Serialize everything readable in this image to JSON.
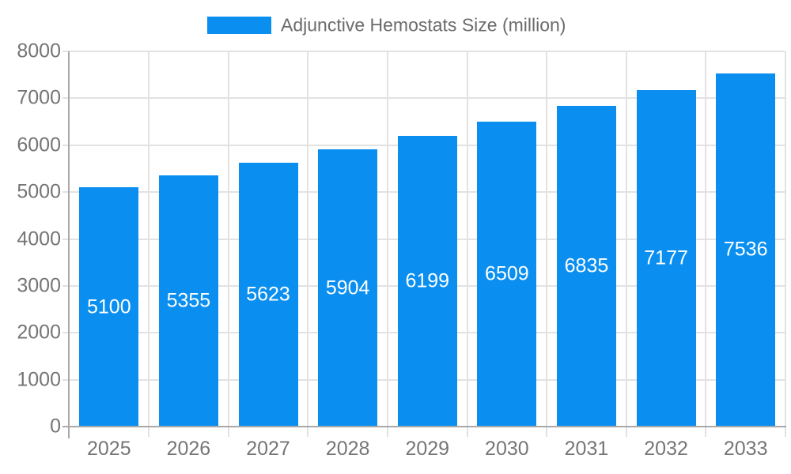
{
  "legend": {
    "label": "Adjunctive Hemostats Size (million)"
  },
  "colors": {
    "bar": "#0a8ff0",
    "grid": "#e2e2e2",
    "axis": "#a9a9a9",
    "axis_text": "#757575",
    "legend_text": "#6b6b6b",
    "value_label": "#ffffff",
    "background": "#ffffff"
  },
  "chart_data": {
    "type": "bar",
    "title": "Adjunctive Hemostats Size (million)",
    "series_name": "Adjunctive Hemostats Size (million)",
    "categories": [
      "2025",
      "2026",
      "2027",
      "2028",
      "2029",
      "2030",
      "2031",
      "2032",
      "2033"
    ],
    "values": [
      5100,
      5355,
      5623,
      5904,
      6199,
      6509,
      6835,
      7177,
      7536
    ],
    "xlabel": "",
    "ylabel": "",
    "ylim": [
      0,
      8000
    ],
    "y_ticks": [
      0,
      1000,
      2000,
      3000,
      4000,
      5000,
      6000,
      7000,
      8000
    ],
    "grid": true,
    "legend_position": "top",
    "value_labels": "inside-center"
  }
}
